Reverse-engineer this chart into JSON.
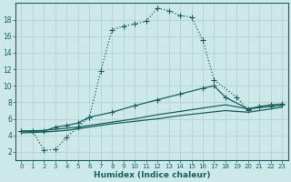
{
  "xlabel": "Humidex (Indice chaleur)",
  "bg_color": "#cce8e8",
  "grid_color": "#b8d4d4",
  "line_color": "#1a6060",
  "xlim": [
    -0.5,
    23.5
  ],
  "ylim": [
    1.0,
    20.0
  ],
  "xticks": [
    0,
    1,
    2,
    3,
    4,
    5,
    6,
    7,
    8,
    9,
    10,
    11,
    12,
    13,
    14,
    15,
    16,
    17,
    18,
    19,
    20,
    21,
    22,
    23
  ],
  "yticks": [
    2,
    4,
    6,
    8,
    10,
    12,
    14,
    16,
    18
  ],
  "curve1_x": [
    0,
    1,
    2,
    3,
    4,
    5,
    6,
    7,
    8,
    9,
    10,
    11,
    12,
    13,
    14,
    15,
    16,
    17,
    19,
    20,
    21,
    22,
    23
  ],
  "curve1_y": [
    4.5,
    4.5,
    2.2,
    2.3,
    3.8,
    5.0,
    6.2,
    11.8,
    16.8,
    17.2,
    17.5,
    17.8,
    19.4,
    19.1,
    18.5,
    18.3,
    15.5,
    10.7,
    8.6,
    7.0,
    7.5,
    7.5,
    7.7
  ],
  "curve2_x": [
    0,
    1,
    2,
    3,
    4,
    5,
    6,
    8,
    10,
    12,
    14,
    16,
    17,
    18,
    20,
    21,
    22,
    23
  ],
  "curve2_y": [
    4.5,
    4.5,
    4.5,
    5.0,
    5.2,
    5.5,
    6.2,
    6.8,
    7.6,
    8.3,
    9.0,
    9.7,
    10.0,
    8.6,
    7.2,
    7.5,
    7.7,
    7.8
  ],
  "curve3_x": [
    0,
    2,
    5,
    8,
    10,
    12,
    14,
    16,
    18,
    20,
    22,
    23
  ],
  "curve3_y": [
    4.5,
    4.6,
    5.0,
    5.6,
    6.0,
    6.5,
    6.9,
    7.3,
    7.7,
    7.2,
    7.5,
    7.6
  ],
  "curve4_x": [
    0,
    2,
    4,
    6,
    8,
    10,
    12,
    14,
    16,
    18,
    20,
    22,
    23
  ],
  "curve4_y": [
    4.3,
    4.4,
    4.6,
    5.0,
    5.4,
    5.7,
    6.0,
    6.4,
    6.7,
    7.0,
    6.8,
    7.2,
    7.4
  ]
}
